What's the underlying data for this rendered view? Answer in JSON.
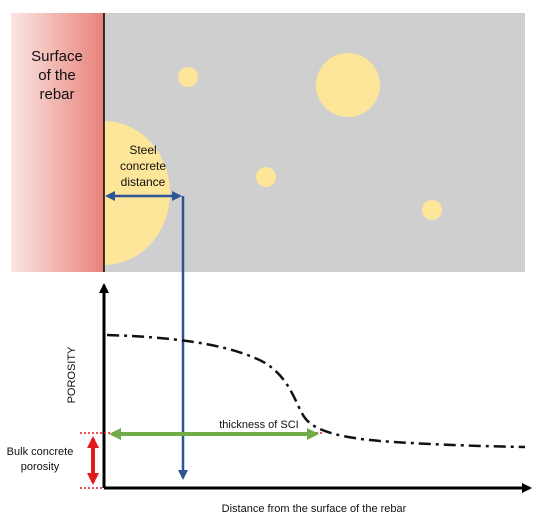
{
  "labels": {
    "surface_line1": "Surface",
    "surface_line2": "of the",
    "surface_line3": "rebar",
    "steel_line1": "Steel",
    "steel_line2": "concrete",
    "steel_line3": "distance",
    "y_axis": "POROSITY",
    "sci_thickness": "thickness of SCI",
    "bulk_line1": "Bulk concrete",
    "bulk_line2": "porosity",
    "x_axis": "Distance from the surface of the rebar"
  },
  "colors": {
    "concrete": "#cfcfcf",
    "aggregate": "#fde59a",
    "rebar_edge": "#e8827a",
    "rebar_fade": "#fbe6e4",
    "distance_arrow": "#2f5597",
    "sci_arrow": "#70ad47",
    "bulk_arrow": "#e31a1c",
    "curve": "#111111"
  },
  "porosity_profile": {
    "description_points": "high near rebar, drops across SCI to bulk level",
    "near_surface_level": "high",
    "bulk_level": "low"
  }
}
